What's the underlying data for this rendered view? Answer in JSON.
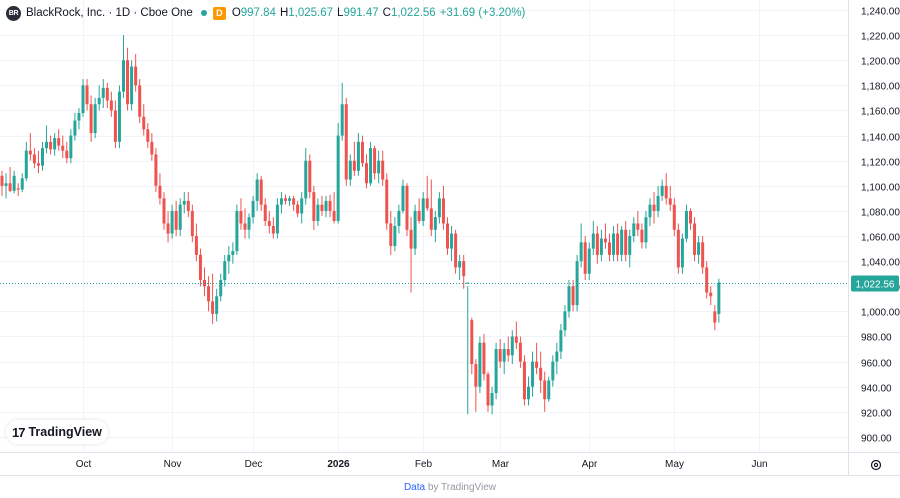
{
  "header": {
    "symbol_badge": "BR",
    "title": "BlackRock, Inc. · 1D · Cboe One",
    "session_badge": "D",
    "ohlc": {
      "o_label": "O",
      "o": "997.84",
      "h_label": "H",
      "h": "1,025.67",
      "l_label": "L",
      "l": "991.47",
      "c_label": "C",
      "c": "1,022.56",
      "change": "+31.69 (+3.20%)"
    }
  },
  "logo": {
    "mark": "17",
    "text": "TradingView"
  },
  "footer": {
    "link": "Data",
    "rest": "by TradingView"
  },
  "colors": {
    "up": "#26a69a",
    "down": "#ef5350",
    "grid": "#f0f3fa",
    "axis_text": "#131722",
    "price_line": "#26a69a"
  },
  "chart_data": {
    "type": "candlestick",
    "title": "BlackRock, Inc. · 1D · Cboe One",
    "ylim": [
      888,
      1248
    ],
    "y_ticks": [
      900,
      920,
      940,
      960,
      980,
      1000,
      1020,
      1040,
      1060,
      1080,
      1100,
      1120,
      1140,
      1160,
      1180,
      1200,
      1220,
      1240
    ],
    "y_tick_labels": [
      "900.00",
      "920.00",
      "940.00",
      "960.00",
      "980.00",
      "1,000.00",
      "1,020.00",
      "1,040.00",
      "1,060.00",
      "1,080.00",
      "1,100.00",
      "1,120.00",
      "1,140.00",
      "1,160.00",
      "1,180.00",
      "1,200.00",
      "1,220.00",
      "1,240.00"
    ],
    "x_labels": [
      {
        "label": "Oct",
        "index": 20
      },
      {
        "label": "Nov",
        "index": 42
      },
      {
        "label": "Dec",
        "index": 62
      },
      {
        "label": "2026",
        "index": 83
      },
      {
        "label": "Feb",
        "index": 104
      },
      {
        "label": "Mar",
        "index": 123
      },
      {
        "label": "Apr",
        "index": 145
      },
      {
        "label": "May",
        "index": 166
      },
      {
        "label": "Jun",
        "index": 187
      }
    ],
    "last_price": 1022.56,
    "last_price_label": "1,022.56",
    "grid": true,
    "candles": [
      [
        1108,
        1112,
        1092,
        1100
      ],
      [
        1100,
        1110,
        1090,
        1102
      ],
      [
        1102,
        1115,
        1095,
        1096
      ],
      [
        1096,
        1112,
        1094,
        1108
      ],
      [
        1098,
        1102,
        1092,
        1097
      ],
      [
        1097,
        1110,
        1095,
        1106
      ],
      [
        1106,
        1135,
        1104,
        1128
      ],
      [
        1128,
        1142,
        1120,
        1125
      ],
      [
        1125,
        1130,
        1114,
        1118
      ],
      [
        1118,
        1128,
        1110,
        1116
      ],
      [
        1116,
        1135,
        1112,
        1130
      ],
      [
        1130,
        1148,
        1126,
        1135
      ],
      [
        1135,
        1140,
        1125,
        1129
      ],
      [
        1129,
        1142,
        1124,
        1138
      ],
      [
        1138,
        1145,
        1128,
        1132
      ],
      [
        1132,
        1140,
        1122,
        1128
      ],
      [
        1128,
        1135,
        1118,
        1122
      ],
      [
        1122,
        1145,
        1118,
        1140
      ],
      [
        1140,
        1158,
        1136,
        1152
      ],
      [
        1152,
        1162,
        1145,
        1158
      ],
      [
        1158,
        1185,
        1155,
        1180
      ],
      [
        1180,
        1185,
        1160,
        1165
      ],
      [
        1165,
        1172,
        1135,
        1142
      ],
      [
        1142,
        1170,
        1138,
        1165
      ],
      [
        1165,
        1180,
        1160,
        1170
      ],
      [
        1170,
        1185,
        1162,
        1178
      ],
      [
        1178,
        1182,
        1162,
        1168
      ],
      [
        1168,
        1175,
        1155,
        1160
      ],
      [
        1160,
        1168,
        1130,
        1135
      ],
      [
        1135,
        1180,
        1130,
        1175
      ],
      [
        1175,
        1220,
        1170,
        1200
      ],
      [
        1200,
        1210,
        1160,
        1165
      ],
      [
        1165,
        1200,
        1160,
        1195
      ],
      [
        1195,
        1205,
        1175,
        1180
      ],
      [
        1180,
        1185,
        1150,
        1155
      ],
      [
        1155,
        1165,
        1140,
        1145
      ],
      [
        1145,
        1150,
        1130,
        1135
      ],
      [
        1135,
        1142,
        1120,
        1125
      ],
      [
        1125,
        1130,
        1095,
        1100
      ],
      [
        1100,
        1110,
        1085,
        1090
      ],
      [
        1090,
        1095,
        1065,
        1070
      ],
      [
        1070,
        1080,
        1055,
        1062
      ],
      [
        1062,
        1085,
        1058,
        1080
      ],
      [
        1080,
        1088,
        1060,
        1065
      ],
      [
        1065,
        1090,
        1060,
        1085
      ],
      [
        1085,
        1095,
        1078,
        1088
      ],
      [
        1088,
        1095,
        1075,
        1080
      ],
      [
        1080,
        1085,
        1055,
        1060
      ],
      [
        1060,
        1070,
        1040,
        1045
      ],
      [
        1045,
        1050,
        1020,
        1025
      ],
      [
        1025,
        1035,
        1012,
        1020
      ],
      [
        1020,
        1028,
        1000,
        1008
      ],
      [
        1008,
        1030,
        990,
        998
      ],
      [
        998,
        1018,
        992,
        1012
      ],
      [
        1012,
        1030,
        1008,
        1025
      ],
      [
        1025,
        1045,
        1020,
        1040
      ],
      [
        1040,
        1052,
        1030,
        1045
      ],
      [
        1045,
        1055,
        1038,
        1048
      ],
      [
        1048,
        1085,
        1045,
        1080
      ],
      [
        1080,
        1090,
        1065,
        1070
      ],
      [
        1070,
        1082,
        1058,
        1065
      ],
      [
        1065,
        1078,
        1058,
        1075
      ],
      [
        1075,
        1092,
        1070,
        1088
      ],
      [
        1088,
        1110,
        1080,
        1105
      ],
      [
        1105,
        1108,
        1080,
        1085
      ],
      [
        1085,
        1090,
        1068,
        1072
      ],
      [
        1072,
        1080,
        1062,
        1068
      ],
      [
        1068,
        1075,
        1058,
        1062
      ],
      [
        1062,
        1090,
        1058,
        1085
      ],
      [
        1085,
        1095,
        1078,
        1090
      ],
      [
        1090,
        1093,
        1085,
        1088
      ],
      [
        1088,
        1092,
        1084,
        1090
      ],
      [
        1090,
        1092,
        1080,
        1085
      ],
      [
        1085,
        1088,
        1075,
        1078
      ],
      [
        1078,
        1095,
        1070,
        1090
      ],
      [
        1090,
        1130,
        1085,
        1120
      ],
      [
        1120,
        1125,
        1090,
        1095
      ],
      [
        1095,
        1100,
        1065,
        1072
      ],
      [
        1072,
        1090,
        1068,
        1085
      ],
      [
        1085,
        1092,
        1076,
        1080
      ],
      [
        1080,
        1092,
        1075,
        1088
      ],
      [
        1088,
        1093,
        1075,
        1080
      ],
      [
        1080,
        1095,
        1070,
        1072
      ],
      [
        1072,
        1150,
        1070,
        1140
      ],
      [
        1140,
        1182,
        1136,
        1165
      ],
      [
        1165,
        1170,
        1100,
        1105
      ],
      [
        1105,
        1125,
        1100,
        1120
      ],
      [
        1120,
        1135,
        1108,
        1112
      ],
      [
        1112,
        1142,
        1108,
        1135
      ],
      [
        1135,
        1140,
        1115,
        1118
      ],
      [
        1118,
        1125,
        1098,
        1102
      ],
      [
        1102,
        1135,
        1100,
        1130
      ],
      [
        1130,
        1132,
        1105,
        1110
      ],
      [
        1110,
        1128,
        1102,
        1120
      ],
      [
        1120,
        1128,
        1100,
        1105
      ],
      [
        1105,
        1110,
        1065,
        1070
      ],
      [
        1070,
        1080,
        1045,
        1052
      ],
      [
        1052,
        1075,
        1048,
        1068
      ],
      [
        1068,
        1085,
        1062,
        1080
      ],
      [
        1080,
        1105,
        1078,
        1100
      ],
      [
        1100,
        1102,
        1060,
        1065
      ],
      [
        1065,
        1075,
        1015,
        1050
      ],
      [
        1050,
        1085,
        1045,
        1080
      ],
      [
        1080,
        1090,
        1070,
        1072
      ],
      [
        1072,
        1095,
        1068,
        1090
      ],
      [
        1090,
        1108,
        1080,
        1082
      ],
      [
        1082,
        1105,
        1060,
        1065
      ],
      [
        1065,
        1080,
        1055,
        1075
      ],
      [
        1075,
        1095,
        1070,
        1090
      ],
      [
        1090,
        1100,
        1065,
        1070
      ],
      [
        1070,
        1075,
        1045,
        1050
      ],
      [
        1050,
        1068,
        1040,
        1062
      ],
      [
        1062,
        1065,
        1030,
        1035
      ],
      [
        1035,
        1045,
        1025,
        1040
      ],
      [
        1040,
        1045,
        1018,
        1028
      ],
      [
        1022,
        1020,
        918,
        1023
      ],
      [
        993,
        995,
        950,
        958
      ],
      [
        958,
        962,
        920,
        940
      ],
      [
        940,
        980,
        935,
        975
      ],
      [
        975,
        982,
        945,
        950
      ],
      [
        950,
        952,
        920,
        925
      ],
      [
        925,
        940,
        918,
        935
      ],
      [
        935,
        975,
        930,
        970
      ],
      [
        970,
        978,
        955,
        960
      ],
      [
        960,
        975,
        950,
        970
      ],
      [
        970,
        980,
        960,
        965
      ],
      [
        965,
        985,
        958,
        980
      ],
      [
        980,
        992,
        970,
        975
      ],
      [
        975,
        980,
        955,
        960
      ],
      [
        960,
        965,
        925,
        930
      ],
      [
        930,
        948,
        925,
        940
      ],
      [
        940,
        968,
        932,
        960
      ],
      [
        960,
        975,
        950,
        955
      ],
      [
        955,
        968,
        935,
        945
      ],
      [
        945,
        952,
        920,
        930
      ],
      [
        930,
        948,
        928,
        945
      ],
      [
        945,
        965,
        940,
        960
      ],
      [
        960,
        975,
        950,
        968
      ],
      [
        968,
        990,
        962,
        985
      ],
      [
        985,
        1005,
        980,
        1000
      ],
      [
        1000,
        1025,
        995,
        1020
      ],
      [
        1020,
        1025,
        1000,
        1005
      ],
      [
        1005,
        1045,
        1000,
        1040
      ],
      [
        1040,
        1070,
        1035,
        1055
      ],
      [
        1055,
        1060,
        1025,
        1030
      ],
      [
        1030,
        1055,
        1025,
        1050
      ],
      [
        1050,
        1072,
        1045,
        1062
      ],
      [
        1062,
        1068,
        1038,
        1045
      ],
      [
        1045,
        1065,
        1040,
        1058
      ],
      [
        1058,
        1070,
        1050,
        1055
      ],
      [
        1055,
        1062,
        1040,
        1045
      ],
      [
        1045,
        1068,
        1040,
        1062
      ],
      [
        1062,
        1070,
        1040,
        1045
      ],
      [
        1045,
        1068,
        1040,
        1065
      ],
      [
        1065,
        1072,
        1040,
        1045
      ],
      [
        1045,
        1065,
        1035,
        1060
      ],
      [
        1060,
        1075,
        1055,
        1070
      ],
      [
        1070,
        1080,
        1060,
        1065
      ],
      [
        1065,
        1070,
        1050,
        1055
      ],
      [
        1055,
        1080,
        1050,
        1075
      ],
      [
        1075,
        1090,
        1068,
        1085
      ],
      [
        1085,
        1095,
        1070,
        1080
      ],
      [
        1080,
        1100,
        1075,
        1092
      ],
      [
        1092,
        1105,
        1088,
        1100
      ],
      [
        1100,
        1110,
        1085,
        1090
      ],
      [
        1090,
        1100,
        1080,
        1085
      ],
      [
        1085,
        1090,
        1060,
        1065
      ],
      [
        1065,
        1070,
        1030,
        1035
      ],
      [
        1035,
        1062,
        1030,
        1058
      ],
      [
        1058,
        1085,
        1055,
        1080
      ],
      [
        1080,
        1082,
        1065,
        1070
      ],
      [
        1070,
        1075,
        1040,
        1045
      ],
      [
        1045,
        1060,
        1038,
        1055
      ],
      [
        1055,
        1060,
        1030,
        1035
      ],
      [
        1035,
        1040,
        1010,
        1015
      ],
      [
        1015,
        1020,
        1005,
        1012
      ],
      [
        1000,
        1005,
        985,
        991
      ],
      [
        998,
        1026,
        991,
        1023
      ]
    ]
  }
}
